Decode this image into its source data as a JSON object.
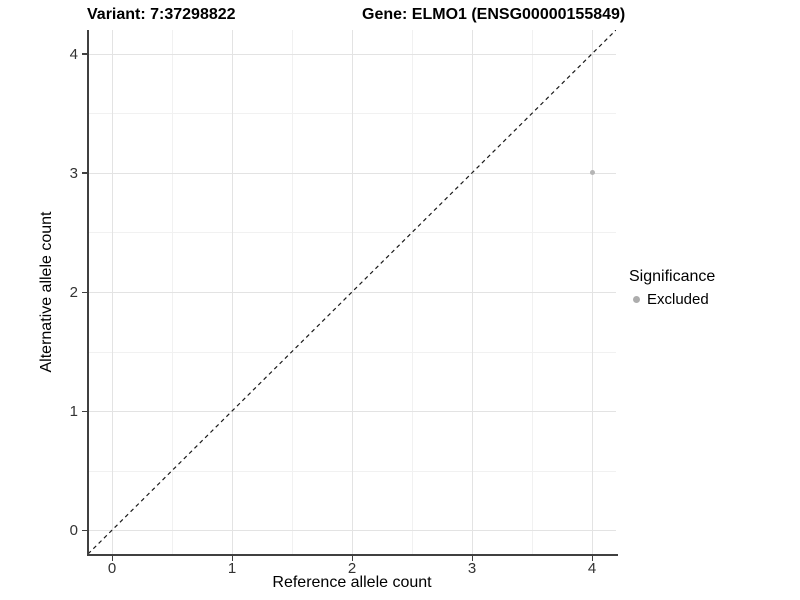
{
  "titles": {
    "variant": "Variant: 7:37298822",
    "gene": "Gene: ELMO1 (ENSG00000155849)"
  },
  "axes": {
    "x": {
      "label": "Reference allele count",
      "ticks": [
        {
          "value": 0,
          "label": "0"
        },
        {
          "value": 1,
          "label": "1"
        },
        {
          "value": 2,
          "label": "2"
        },
        {
          "value": 3,
          "label": "3"
        },
        {
          "value": 4,
          "label": "4"
        }
      ]
    },
    "y": {
      "label": "Alternative allele count",
      "ticks": [
        {
          "value": 0,
          "label": "0"
        },
        {
          "value": 1,
          "label": "1"
        },
        {
          "value": 2,
          "label": "2"
        },
        {
          "value": 3,
          "label": "3"
        },
        {
          "value": 4,
          "label": "4"
        }
      ]
    }
  },
  "legend": {
    "title": "Significance",
    "items": [
      {
        "label": "Excluded",
        "color": "#adadad",
        "marker": "circle"
      }
    ]
  },
  "chart_data": {
    "type": "scatter",
    "title_left": "Variant: 7:37298822",
    "title_right": "Gene: ELMO1 (ENSG00000155849)",
    "xlabel": "Reference allele count",
    "ylabel": "Alternative allele count",
    "xlim": [
      -0.2,
      4.2
    ],
    "ylim": [
      -0.2,
      4.2
    ],
    "x_ticks": [
      0,
      1,
      2,
      3,
      4
    ],
    "y_ticks": [
      0,
      1,
      2,
      3,
      4
    ],
    "grid": {
      "major": true,
      "minor": true
    },
    "legend_position": "right",
    "legend_title": "Significance",
    "series": [
      {
        "name": "Excluded",
        "color": "#b5b5b5",
        "point_radius_px": 2.5,
        "points": [
          {
            "x": 4,
            "y": 3
          }
        ]
      }
    ],
    "reference_line": {
      "type": "identity",
      "equation": "y = x",
      "style": "dashed",
      "color": "#1a1a1a"
    }
  },
  "colors": {
    "background": "#ffffff",
    "grid_major": "#e3e3e3",
    "grid_minor": "#f1f1f1",
    "axis_line": "#404040",
    "tick_text": "#333333"
  }
}
